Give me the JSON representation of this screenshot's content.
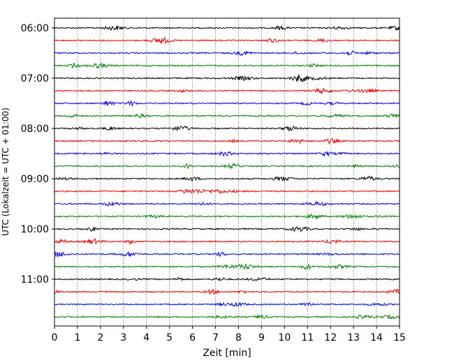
{
  "chart_data": {
    "type": "line",
    "title": "",
    "xlabel": "Zeit  [min]",
    "ylabel": "UTC (Lokalzeit = UTC + 01:00)",
    "xlim": [
      0,
      15
    ],
    "x_ticks": [
      "0",
      "1",
      "2",
      "3",
      "4",
      "5",
      "6",
      "7",
      "8",
      "9",
      "10",
      "11",
      "12",
      "13",
      "14",
      "15"
    ],
    "y_ticks": [
      "06:00",
      "07:00",
      "08:00",
      "09:00",
      "10:00",
      "11:00"
    ],
    "grid": "vertical dotted",
    "trace_interval_minutes": 15,
    "first_trace": "06:00",
    "colors": [
      "#000000",
      "#ff0000",
      "#0000ff",
      "#008000"
    ],
    "series": [
      {
        "start": "06:00"
      },
      {
        "start": "06:15"
      },
      {
        "start": "06:30"
      },
      {
        "start": "06:45"
      },
      {
        "start": "07:00"
      },
      {
        "start": "07:15"
      },
      {
        "start": "07:30"
      },
      {
        "start": "07:45"
      },
      {
        "start": "08:00"
      },
      {
        "start": "08:15"
      },
      {
        "start": "08:30"
      },
      {
        "start": "08:45"
      },
      {
        "start": "09:00"
      },
      {
        "start": "09:15"
      },
      {
        "start": "09:30"
      },
      {
        "start": "09:45"
      },
      {
        "start": "10:00"
      },
      {
        "start": "10:15"
      },
      {
        "start": "10:30"
      },
      {
        "start": "10:45"
      },
      {
        "start": "11:00"
      },
      {
        "start": "11:15"
      },
      {
        "start": "11:30"
      },
      {
        "start": "11:45"
      }
    ]
  }
}
